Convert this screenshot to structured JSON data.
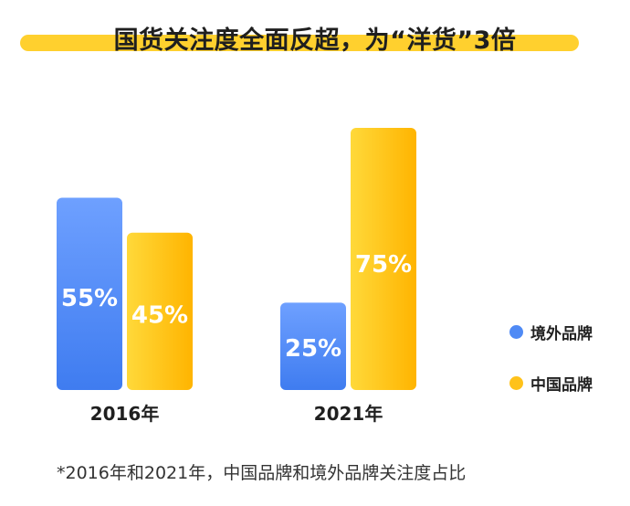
{
  "title": "国货关注度全面反超，为“洋货”3倍",
  "footnote": "*2016年和2021年，中国品牌和境外品牌关注度占比",
  "colors": {
    "foreign": "#4F8AF5",
    "domestic": "#FFC21A",
    "accent_band": "#FFD02E"
  },
  "legend": [
    {
      "name": "境外品牌",
      "color": "#4F8AF5"
    },
    {
      "name": "中国品牌",
      "color": "#FFC21A"
    }
  ],
  "chart_data": {
    "type": "bar",
    "categories": [
      "2016年",
      "2021年"
    ],
    "series": [
      {
        "name": "境外品牌",
        "values": [
          55,
          25
        ],
        "labels": [
          "55%",
          "25%"
        ]
      },
      {
        "name": "中国品牌",
        "values": [
          45,
          75
        ],
        "labels": [
          "45%",
          "75%"
        ]
      }
    ],
    "ylim": [
      0,
      75
    ],
    "grid": false,
    "legend_position": "right"
  }
}
